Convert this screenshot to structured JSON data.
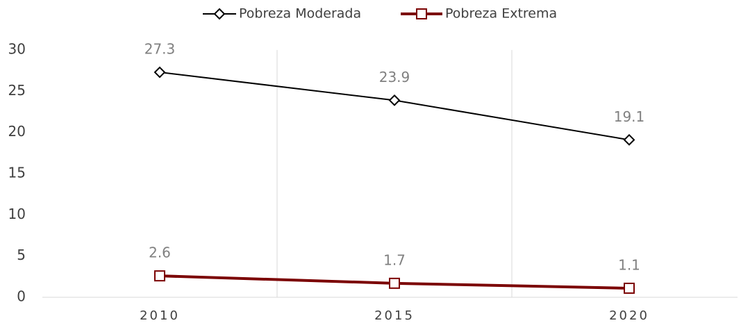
{
  "chart_data": {
    "type": "line",
    "categories": [
      "2010",
      "2015",
      "2020"
    ],
    "series": [
      {
        "name": "Pobreza Moderada",
        "color": "#000000",
        "marker": "diamond",
        "values": [
          27.3,
          23.9,
          19.1
        ]
      },
      {
        "name": "Pobreza Extrema",
        "color": "#7b0000",
        "marker": "square",
        "values": [
          2.6,
          1.7,
          1.1
        ]
      }
    ],
    "ylim": [
      0,
      30
    ],
    "yticks": [
      0,
      5,
      10,
      15,
      20,
      25,
      30
    ],
    "legend": "top",
    "data_labels": true
  }
}
